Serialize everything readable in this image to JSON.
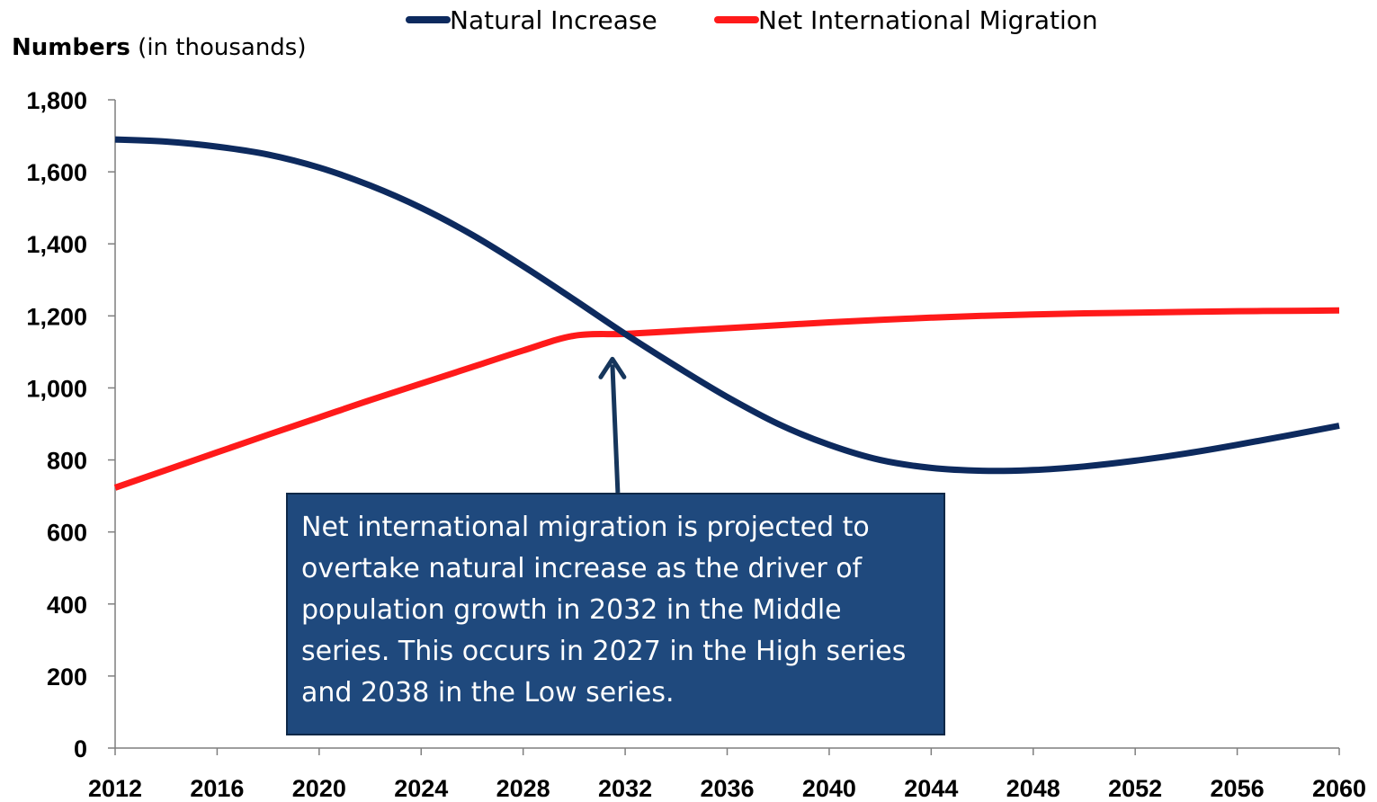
{
  "chart_data": {
    "type": "line",
    "ylabel_bold": "Numbers",
    "ylabel_rest": " (in thousands)",
    "ylim": [
      0,
      1800
    ],
    "yticks": [
      0,
      200,
      400,
      600,
      800,
      1000,
      1200,
      1400,
      1600,
      1800
    ],
    "ytick_labels": [
      "0",
      "200",
      "400",
      "600",
      "800",
      "1,000",
      "1,200",
      "1,400",
      "1,600",
      "1,800"
    ],
    "xlim": [
      2012,
      2060
    ],
    "xticks": [
      2012,
      2016,
      2020,
      2024,
      2028,
      2032,
      2036,
      2040,
      2044,
      2048,
      2052,
      2056,
      2060
    ],
    "xtick_labels": [
      "2012",
      "2016",
      "2020",
      "2024",
      "2028",
      "2032",
      "2036",
      "2040",
      "2044",
      "2048",
      "2052",
      "2056",
      "2060"
    ],
    "grid": false,
    "legend_position": "top",
    "series": [
      {
        "name": "Natural Increase",
        "color": "#0d2a5e",
        "x": [
          2012,
          2014,
          2016,
          2018,
          2020,
          2022,
          2024,
          2026,
          2028,
          2030,
          2032,
          2034,
          2036,
          2038,
          2040,
          2042,
          2044,
          2046,
          2048,
          2050,
          2052,
          2054,
          2056,
          2058,
          2060
        ],
        "y": [
          1690,
          1684,
          1670,
          1648,
          1612,
          1562,
          1500,
          1425,
          1338,
          1245,
          1150,
          1060,
          975,
          900,
          842,
          800,
          778,
          770,
          772,
          782,
          798,
          818,
          842,
          868,
          895
        ]
      },
      {
        "name": "Net International Migration",
        "color": "#ff1a1a",
        "x": [
          2012,
          2014,
          2016,
          2018,
          2020,
          2022,
          2024,
          2026,
          2028,
          2030,
          2032,
          2034,
          2036,
          2038,
          2040,
          2042,
          2044,
          2046,
          2048,
          2050,
          2052,
          2054,
          2056,
          2058,
          2060
        ],
        "y": [
          723,
          772,
          821,
          870,
          918,
          966,
          1012,
          1058,
          1104,
          1145,
          1150,
          1158,
          1166,
          1174,
          1182,
          1189,
          1195,
          1200,
          1204,
          1207,
          1209,
          1211,
          1213,
          1214,
          1215
        ]
      }
    ],
    "annotation": {
      "text": "Net international migration is projected to overtake natural increase as the driver of population growth in 2032  in the Middle series. This occurs in 2027 in the High series and 2038 in the Low series.",
      "arrow_target": {
        "x": 2031.5,
        "y": 1120
      },
      "box_color": "#1f497d"
    }
  }
}
